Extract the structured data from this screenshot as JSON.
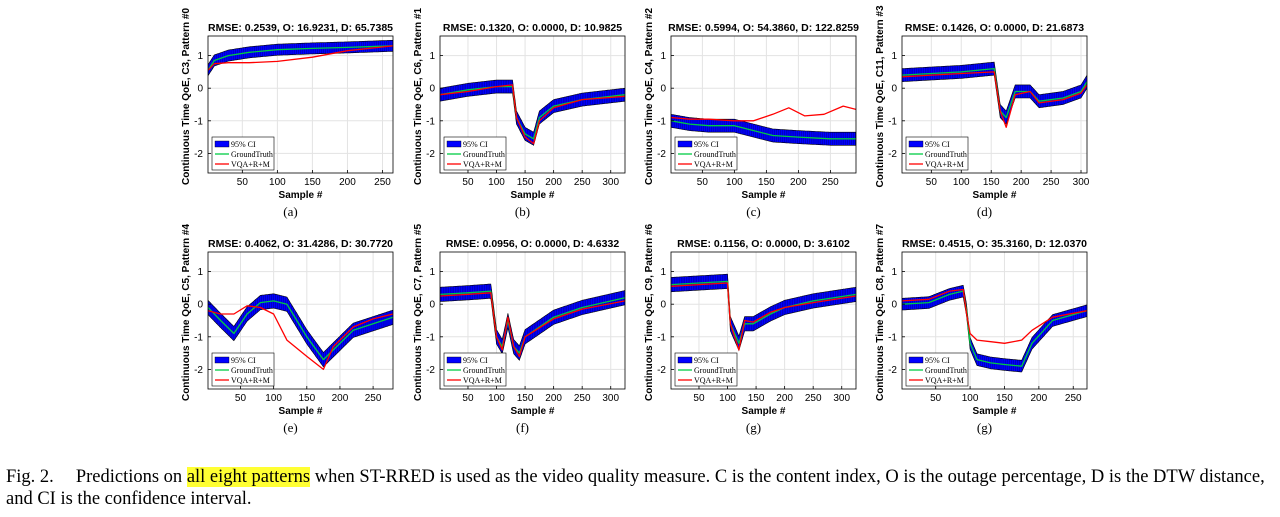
{
  "chart_data": [
    {
      "type": "line",
      "label": "(a)",
      "title": "RMSE: 0.2539, O: 16.9231, D: 65.7385",
      "ylabel": "Continuous Time QoE, C3, Pattern #0",
      "xlabel": "Sample #",
      "xlim": [
        1,
        265
      ],
      "ylim": [
        -2.6,
        1.6
      ],
      "xticks": [
        50,
        100,
        150,
        200,
        250
      ],
      "yticks": [
        -2,
        -1,
        0,
        1
      ],
      "series": [
        {
          "name": "GroundTruth",
          "x": [
            1,
            10,
            30,
            60,
            100,
            150,
            200,
            265
          ],
          "y": [
            0.55,
            0.85,
            1.0,
            1.1,
            1.18,
            1.22,
            1.25,
            1.3
          ]
        },
        {
          "name": "VQA+R+M",
          "x": [
            1,
            10,
            30,
            60,
            100,
            150,
            200,
            265
          ],
          "y": [
            0.55,
            0.75,
            0.78,
            0.78,
            0.82,
            0.95,
            1.15,
            1.3
          ]
        }
      ],
      "ci_halfwidth": 0.17,
      "legend": [
        "95% CI",
        "GroundTruth",
        "VQA+R+M"
      ]
    },
    {
      "type": "line",
      "label": "(b)",
      "title": "RMSE: 0.1320, O: 0.0000, D: 10.9825",
      "ylabel": "Continuous Time QoE, C6, Pattern #1",
      "xlabel": "Sample #",
      "xlim": [
        1,
        325
      ],
      "ylim": [
        -2.6,
        1.6
      ],
      "xticks": [
        50,
        100,
        150,
        200,
        250,
        300
      ],
      "yticks": [
        -2,
        -1,
        0,
        1
      ],
      "series": [
        {
          "name": "GroundTruth",
          "x": [
            1,
            50,
            100,
            128,
            135,
            150,
            165,
            175,
            200,
            250,
            325
          ],
          "y": [
            -0.2,
            -0.05,
            0.05,
            0.05,
            -0.9,
            -1.4,
            -1.55,
            -0.9,
            -0.55,
            -0.35,
            -0.2
          ]
        },
        {
          "name": "VQA+R+M",
          "x": [
            1,
            50,
            100,
            128,
            135,
            150,
            165,
            175,
            200,
            250,
            325
          ],
          "y": [
            -0.2,
            -0.1,
            0.05,
            0.1,
            -0.9,
            -1.5,
            -1.7,
            -1.0,
            -0.6,
            -0.35,
            -0.25
          ]
        }
      ],
      "ci_halfwidth": 0.2,
      "legend": [
        "95% CI",
        "GroundTruth",
        "VQA+R+M"
      ]
    },
    {
      "type": "line",
      "label": "(c)",
      "title": "RMSE: 0.5994, O: 54.3860, D: 122.8259",
      "ylabel": "Continuous Time QoE, C4, Pattern #2",
      "xlabel": "Sample #",
      "xlim": [
        1,
        290
      ],
      "ylim": [
        -2.6,
        1.6
      ],
      "xticks": [
        50,
        100,
        150,
        200,
        250
      ],
      "yticks": [
        -2,
        -1,
        0,
        1
      ],
      "series": [
        {
          "name": "GroundTruth",
          "x": [
            1,
            30,
            60,
            100,
            130,
            160,
            200,
            250,
            290
          ],
          "y": [
            -1.0,
            -1.1,
            -1.15,
            -1.15,
            -1.3,
            -1.45,
            -1.5,
            -1.55,
            -1.55
          ]
        },
        {
          "name": "VQA+R+M",
          "x": [
            1,
            30,
            60,
            100,
            130,
            160,
            185,
            210,
            240,
            270,
            290
          ],
          "y": [
            -0.9,
            -0.95,
            -0.95,
            -1.0,
            -1.0,
            -0.8,
            -0.6,
            -0.85,
            -0.8,
            -0.55,
            -0.65
          ]
        }
      ],
      "ci_halfwidth": 0.2,
      "legend": [
        "95% CI",
        "GroundTruth",
        "VQA+R+M"
      ]
    },
    {
      "type": "line",
      "label": "(d)",
      "title": "RMSE: 0.1426, O: 0.0000, D: 21.6873",
      "ylabel": "Continuous Time QoE, C11, Pattern #3",
      "xlabel": "Sample #",
      "xlim": [
        1,
        310
      ],
      "ylim": [
        -2.6,
        1.6
      ],
      "xticks": [
        50,
        100,
        150,
        200,
        250,
        300
      ],
      "yticks": [
        -2,
        -1,
        0,
        1
      ],
      "series": [
        {
          "name": "GroundTruth",
          "x": [
            1,
            50,
            100,
            155,
            165,
            175,
            190,
            215,
            230,
            270,
            300,
            310
          ],
          "y": [
            0.4,
            0.45,
            0.5,
            0.6,
            -0.7,
            -0.9,
            -0.1,
            -0.1,
            -0.4,
            -0.3,
            -0.1,
            0.2
          ]
        },
        {
          "name": "VQA+R+M",
          "x": [
            1,
            50,
            100,
            155,
            165,
            175,
            190,
            215,
            230,
            270,
            300,
            310
          ],
          "y": [
            0.35,
            0.4,
            0.45,
            0.5,
            -0.7,
            -1.2,
            -0.2,
            -0.1,
            -0.45,
            -0.35,
            -0.15,
            0.1
          ]
        }
      ],
      "ci_halfwidth": 0.2,
      "legend": [
        "95% CI",
        "GroundTruth",
        "VQA+R+M"
      ]
    },
    {
      "type": "line",
      "label": "(e)",
      "title": "RMSE: 0.4062, O: 31.4286, D: 30.7720",
      "ylabel": "Continuous Time QoE, C5, Pattern #4",
      "xlabel": "Sample #",
      "xlim": [
        1,
        280
      ],
      "ylim": [
        -2.6,
        1.6
      ],
      "xticks": [
        50,
        100,
        150,
        200,
        250
      ],
      "yticks": [
        -2,
        -1,
        0,
        1
      ],
      "series": [
        {
          "name": "GroundTruth",
          "x": [
            1,
            20,
            40,
            60,
            80,
            100,
            120,
            150,
            175,
            190,
            220,
            250,
            280
          ],
          "y": [
            -0.1,
            -0.5,
            -0.9,
            -0.3,
            0.05,
            0.1,
            0.0,
            -1.0,
            -1.7,
            -1.4,
            -0.8,
            -0.6,
            -0.4
          ]
        },
        {
          "name": "VQA+R+M",
          "x": [
            1,
            20,
            40,
            60,
            80,
            100,
            120,
            150,
            175,
            190,
            220,
            250,
            280
          ],
          "y": [
            -0.2,
            -0.3,
            -0.3,
            -0.05,
            -0.1,
            -0.3,
            -1.1,
            -1.6,
            -2.0,
            -1.3,
            -0.7,
            -0.45,
            -0.3
          ]
        }
      ],
      "ci_halfwidth": 0.22,
      "legend": [
        "95% CI",
        "GroundTruth",
        "VQA+R+M"
      ]
    },
    {
      "type": "line",
      "label": "(f)",
      "title": "RMSE: 0.0956, O: 0.0000, D: 4.6332",
      "ylabel": "Continuous Time QoE, C7, Pattern #5",
      "xlabel": "Sample #",
      "xlim": [
        1,
        325
      ],
      "ylim": [
        -2.6,
        1.6
      ],
      "xticks": [
        50,
        100,
        150,
        200,
        250,
        300
      ],
      "yticks": [
        -2,
        -1,
        0,
        1
      ],
      "series": [
        {
          "name": "GroundTruth",
          "x": [
            1,
            50,
            90,
            100,
            110,
            120,
            130,
            140,
            150,
            200,
            250,
            325
          ],
          "y": [
            0.3,
            0.35,
            0.4,
            -1.0,
            -1.3,
            -0.5,
            -1.3,
            -1.5,
            -1.0,
            -0.4,
            -0.1,
            0.2
          ]
        },
        {
          "name": "VQA+R+M",
          "x": [
            1,
            50,
            90,
            100,
            110,
            120,
            130,
            140,
            150,
            200,
            250,
            325
          ],
          "y": [
            0.25,
            0.3,
            0.35,
            -1.0,
            -1.4,
            -0.4,
            -1.3,
            -1.6,
            -1.0,
            -0.45,
            -0.15,
            0.1
          ]
        }
      ],
      "ci_halfwidth": 0.22,
      "legend": [
        "95% CI",
        "GroundTruth",
        "VQA+R+M"
      ]
    },
    {
      "type": "line",
      "label": "(g)",
      "title": "RMSE: 0.1156, O: 0.0000, D: 3.6102",
      "ylabel": "Continuous Time QoE, C9, Pattern #6",
      "xlabel": "Sample #",
      "xlim": [
        1,
        325
      ],
      "ylim": [
        -2.6,
        1.6
      ],
      "xticks": [
        50,
        100,
        150,
        200,
        250,
        300
      ],
      "yticks": [
        -2,
        -1,
        0,
        1
      ],
      "series": [
        {
          "name": "GroundTruth",
          "x": [
            1,
            50,
            100,
            105,
            120,
            130,
            145,
            175,
            200,
            250,
            325
          ],
          "y": [
            0.6,
            0.65,
            0.7,
            -0.6,
            -1.2,
            -0.6,
            -0.6,
            -0.3,
            -0.1,
            0.1,
            0.3
          ]
        },
        {
          "name": "VQA+R+M",
          "x": [
            1,
            50,
            100,
            105,
            120,
            130,
            145,
            175,
            200,
            250,
            325
          ],
          "y": [
            0.55,
            0.6,
            0.65,
            -0.6,
            -1.4,
            -0.5,
            -0.55,
            -0.25,
            -0.1,
            0.05,
            0.25
          ]
        }
      ],
      "ci_halfwidth": 0.22,
      "legend": [
        "95% CI",
        "GroundTruth",
        "VQA+R+M"
      ]
    },
    {
      "type": "line",
      "label": "(g)",
      "title": "RMSE: 0.4515, O: 35.3160, D: 12.0370",
      "ylabel": "Continuous Time QoE, C8, Pattern #7",
      "xlabel": "Sample #",
      "xlim": [
        1,
        270
      ],
      "ylim": [
        -2.6,
        1.6
      ],
      "xticks": [
        50,
        100,
        150,
        200,
        250
      ],
      "yticks": [
        -2,
        -1,
        0,
        1
      ],
      "series": [
        {
          "name": "GroundTruth",
          "x": [
            1,
            40,
            70,
            90,
            95,
            100,
            110,
            130,
            150,
            175,
            190,
            220,
            270
          ],
          "y": [
            0.0,
            0.05,
            0.3,
            0.4,
            -0.2,
            -1.2,
            -1.7,
            -1.8,
            -1.85,
            -1.9,
            -1.2,
            -0.5,
            -0.2
          ]
        },
        {
          "name": "VQA+R+M",
          "x": [
            1,
            40,
            70,
            90,
            95,
            100,
            110,
            130,
            150,
            175,
            190,
            220,
            270
          ],
          "y": [
            0.1,
            0.15,
            0.4,
            0.45,
            -0.3,
            -0.9,
            -1.1,
            -1.15,
            -1.2,
            -1.1,
            -0.8,
            -0.4,
            -0.2
          ]
        }
      ],
      "ci_halfwidth": 0.18,
      "legend": [
        "95% CI",
        "GroundTruth",
        "VQA+R+M"
      ]
    }
  ],
  "caption": {
    "label": "Fig. 2.",
    "before": "Predictions on ",
    "highlight": "all eight patterns",
    "after": " when ST-RRED is used as the video quality measure. C is the content index, O is the outage percentage, D is the DTW distance, and CI is the confidence interval."
  },
  "colors": {
    "ci_fill": "#0000ff",
    "ci_edge": "#000000",
    "ground_truth": "#00cc44",
    "prediction": "#ff0000",
    "grid": "#e3e3e3",
    "highlight": "#ffff33"
  }
}
